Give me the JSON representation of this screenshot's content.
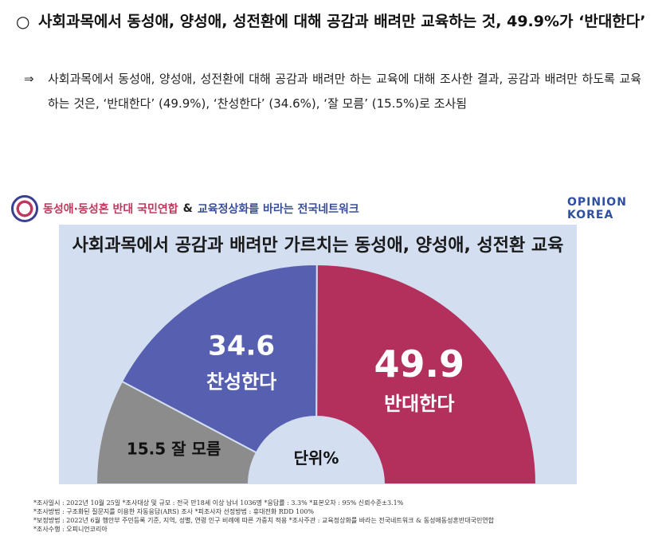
{
  "headline": {
    "bullet": "○",
    "text": "사회과목에서  동성애, 양성애, 성전환에 대해 공감과 배려만 교육하는 것, 49.9%가 ‘반대한다’"
  },
  "summary": {
    "arrow": "⇒",
    "text": "사회과목에서 동성애, 양성애, 성전환에 대해 공감과 배려만 하는 교육에 대해 조사한 결과, 공감과 배려만 하도록 교육하는 것은, ‘반대한다’ (49.9%), ‘찬성한다’ (34.6%), ‘잘 모름’ (15.5%)로 조사됨"
  },
  "logos": {
    "org1": "동성애·동성혼 반대 국민연합",
    "amp": "&",
    "org2": "교육정상화를 바라는 전국네트워크",
    "brand_line1": "OPINION",
    "brand_line2": "KOREA"
  },
  "chart_data": {
    "type": "pie",
    "variant": "semi-donut",
    "title": "사회과목에서 공감과 배려만 가르치는 동성애, 양성애, 성전환 교육",
    "center_label": "단위%",
    "unit": "%",
    "slices": [
      {
        "label": "잘 모름",
        "value": 15.5,
        "color": "#8c8c8c"
      },
      {
        "label": "찬성한다",
        "value": 34.6,
        "color": "#5760b0"
      },
      {
        "label": "반대한다",
        "value": 49.9,
        "color": "#b3305c"
      }
    ]
  },
  "notes": [
    "*조사일시 : 2022년 10월 25일  *조사대상 및 규모 : 전국 만18세 이상 남녀 1036명 *응답률 : 3.3%  *표본오차 : 95% 신뢰수준±3.1%",
    "*조사방법 : 구조화된 질문지를 이용한 자동응답(ARS) 조사  *피조사자 선정방법 : 휴대전화 RDD 100%",
    "*보정방법 : 2022년 6월 행안부 주민등록 기준, 지역, 성별, 연령 인구 비례에 따른 가중치 적용  *조사주관 : 교육정상화를 바라는 전국네트워크 & 동성애동성혼반대국민연합",
    "*조사수행 : 오피니언코리아"
  ]
}
